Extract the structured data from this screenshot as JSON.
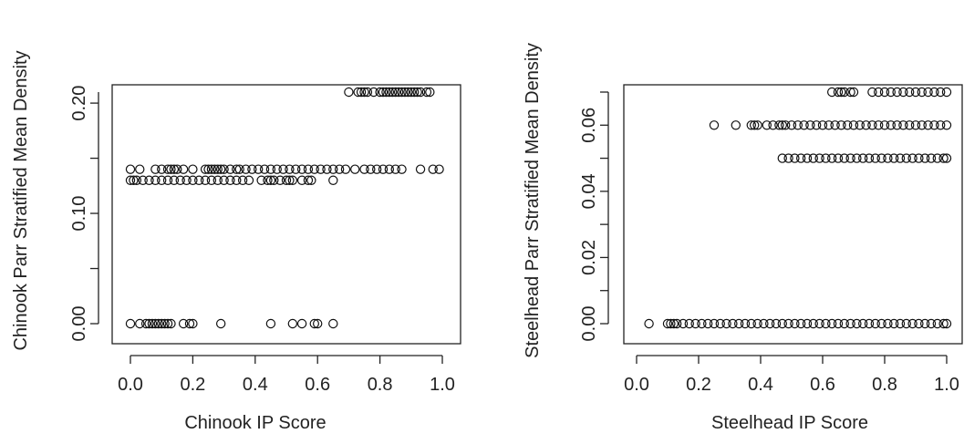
{
  "chart_data": [
    {
      "type": "scatter",
      "xlabel": "Chinook IP Score",
      "ylabel": "Chinook Parr Stratified Mean Density",
      "xlim": [
        0.0,
        1.0
      ],
      "ylim": [
        0.0,
        0.21
      ],
      "xticks": [
        "0.0",
        "0.2",
        "0.4",
        "0.6",
        "0.8",
        "1.0"
      ],
      "yticks": [
        "0.00",
        "0.10",
        "0.20"
      ],
      "series": [
        {
          "points": [
            [
              0.0,
              0.0
            ],
            [
              0.03,
              0.0
            ],
            [
              0.05,
              0.0
            ],
            [
              0.06,
              0.0
            ],
            [
              0.07,
              0.0
            ],
            [
              0.08,
              0.0
            ],
            [
              0.09,
              0.0
            ],
            [
              0.1,
              0.0
            ],
            [
              0.11,
              0.0
            ],
            [
              0.12,
              0.0
            ],
            [
              0.13,
              0.0
            ],
            [
              0.17,
              0.0
            ],
            [
              0.19,
              0.0
            ],
            [
              0.2,
              0.0
            ],
            [
              0.29,
              0.0
            ],
            [
              0.45,
              0.0
            ],
            [
              0.52,
              0.0
            ],
            [
              0.55,
              0.0
            ],
            [
              0.59,
              0.0
            ],
            [
              0.6,
              0.0
            ],
            [
              0.65,
              0.0
            ],
            [
              0.0,
              0.13
            ],
            [
              0.01,
              0.13
            ],
            [
              0.02,
              0.13
            ],
            [
              0.04,
              0.13
            ],
            [
              0.06,
              0.13
            ],
            [
              0.08,
              0.13
            ],
            [
              0.1,
              0.13
            ],
            [
              0.12,
              0.13
            ],
            [
              0.14,
              0.13
            ],
            [
              0.16,
              0.13
            ],
            [
              0.18,
              0.13
            ],
            [
              0.2,
              0.13
            ],
            [
              0.22,
              0.13
            ],
            [
              0.24,
              0.13
            ],
            [
              0.26,
              0.13
            ],
            [
              0.28,
              0.13
            ],
            [
              0.3,
              0.13
            ],
            [
              0.32,
              0.13
            ],
            [
              0.34,
              0.13
            ],
            [
              0.36,
              0.13
            ],
            [
              0.38,
              0.13
            ],
            [
              0.42,
              0.13
            ],
            [
              0.44,
              0.13
            ],
            [
              0.45,
              0.13
            ],
            [
              0.46,
              0.13
            ],
            [
              0.48,
              0.13
            ],
            [
              0.5,
              0.13
            ],
            [
              0.51,
              0.13
            ],
            [
              0.52,
              0.13
            ],
            [
              0.55,
              0.13
            ],
            [
              0.57,
              0.13
            ],
            [
              0.58,
              0.13
            ],
            [
              0.65,
              0.13
            ],
            [
              0.0,
              0.14
            ],
            [
              0.03,
              0.14
            ],
            [
              0.08,
              0.14
            ],
            [
              0.1,
              0.14
            ],
            [
              0.12,
              0.14
            ],
            [
              0.13,
              0.14
            ],
            [
              0.14,
              0.14
            ],
            [
              0.15,
              0.14
            ],
            [
              0.17,
              0.14
            ],
            [
              0.2,
              0.14
            ],
            [
              0.24,
              0.14
            ],
            [
              0.25,
              0.14
            ],
            [
              0.26,
              0.14
            ],
            [
              0.27,
              0.14
            ],
            [
              0.28,
              0.14
            ],
            [
              0.29,
              0.14
            ],
            [
              0.3,
              0.14
            ],
            [
              0.32,
              0.14
            ],
            [
              0.34,
              0.14
            ],
            [
              0.35,
              0.14
            ],
            [
              0.37,
              0.14
            ],
            [
              0.39,
              0.14
            ],
            [
              0.41,
              0.14
            ],
            [
              0.43,
              0.14
            ],
            [
              0.45,
              0.14
            ],
            [
              0.47,
              0.14
            ],
            [
              0.49,
              0.14
            ],
            [
              0.51,
              0.14
            ],
            [
              0.53,
              0.14
            ],
            [
              0.55,
              0.14
            ],
            [
              0.57,
              0.14
            ],
            [
              0.59,
              0.14
            ],
            [
              0.61,
              0.14
            ],
            [
              0.63,
              0.14
            ],
            [
              0.65,
              0.14
            ],
            [
              0.67,
              0.14
            ],
            [
              0.69,
              0.14
            ],
            [
              0.72,
              0.14
            ],
            [
              0.75,
              0.14
            ],
            [
              0.77,
              0.14
            ],
            [
              0.79,
              0.14
            ],
            [
              0.81,
              0.14
            ],
            [
              0.83,
              0.14
            ],
            [
              0.85,
              0.14
            ],
            [
              0.87,
              0.14
            ],
            [
              0.93,
              0.14
            ],
            [
              0.97,
              0.14
            ],
            [
              0.99,
              0.14
            ],
            [
              0.7,
              0.21
            ],
            [
              0.73,
              0.21
            ],
            [
              0.74,
              0.21
            ],
            [
              0.75,
              0.21
            ],
            [
              0.76,
              0.21
            ],
            [
              0.78,
              0.21
            ],
            [
              0.8,
              0.21
            ],
            [
              0.81,
              0.21
            ],
            [
              0.82,
              0.21
            ],
            [
              0.83,
              0.21
            ],
            [
              0.84,
              0.21
            ],
            [
              0.85,
              0.21
            ],
            [
              0.86,
              0.21
            ],
            [
              0.87,
              0.21
            ],
            [
              0.88,
              0.21
            ],
            [
              0.89,
              0.21
            ],
            [
              0.9,
              0.21
            ],
            [
              0.91,
              0.21
            ],
            [
              0.92,
              0.21
            ],
            [
              0.93,
              0.21
            ],
            [
              0.95,
              0.21
            ],
            [
              0.96,
              0.21
            ]
          ]
        }
      ]
    },
    {
      "type": "scatter",
      "xlabel": "Steelhead IP Score",
      "ylabel": "Steelhead Parr Stratified Mean Density",
      "xlim": [
        0.0,
        1.0
      ],
      "ylim": [
        0.0,
        0.07
      ],
      "xticks": [
        "0.0",
        "0.2",
        "0.4",
        "0.6",
        "0.8",
        "1.0"
      ],
      "yticks": [
        "0.00",
        "0.02",
        "0.04",
        "0.06"
      ],
      "series": [
        {
          "points": [
            [
              0.04,
              0.0
            ],
            [
              0.1,
              0.0
            ],
            [
              0.11,
              0.0
            ],
            [
              0.12,
              0.0
            ],
            [
              0.13,
              0.0
            ],
            [
              0.15,
              0.0
            ],
            [
              0.17,
              0.0
            ],
            [
              0.19,
              0.0
            ],
            [
              0.21,
              0.0
            ],
            [
              0.23,
              0.0
            ],
            [
              0.25,
              0.0
            ],
            [
              0.27,
              0.0
            ],
            [
              0.29,
              0.0
            ],
            [
              0.31,
              0.0
            ],
            [
              0.33,
              0.0
            ],
            [
              0.35,
              0.0
            ],
            [
              0.37,
              0.0
            ],
            [
              0.39,
              0.0
            ],
            [
              0.41,
              0.0
            ],
            [
              0.43,
              0.0
            ],
            [
              0.45,
              0.0
            ],
            [
              0.47,
              0.0
            ],
            [
              0.49,
              0.0
            ],
            [
              0.51,
              0.0
            ],
            [
              0.53,
              0.0
            ],
            [
              0.55,
              0.0
            ],
            [
              0.57,
              0.0
            ],
            [
              0.59,
              0.0
            ],
            [
              0.61,
              0.0
            ],
            [
              0.63,
              0.0
            ],
            [
              0.65,
              0.0
            ],
            [
              0.67,
              0.0
            ],
            [
              0.69,
              0.0
            ],
            [
              0.71,
              0.0
            ],
            [
              0.73,
              0.0
            ],
            [
              0.75,
              0.0
            ],
            [
              0.77,
              0.0
            ],
            [
              0.79,
              0.0
            ],
            [
              0.81,
              0.0
            ],
            [
              0.83,
              0.0
            ],
            [
              0.85,
              0.0
            ],
            [
              0.87,
              0.0
            ],
            [
              0.89,
              0.0
            ],
            [
              0.91,
              0.0
            ],
            [
              0.93,
              0.0
            ],
            [
              0.95,
              0.0
            ],
            [
              0.97,
              0.0
            ],
            [
              0.99,
              0.0
            ],
            [
              1.0,
              0.0
            ],
            [
              0.47,
              0.05
            ],
            [
              0.49,
              0.05
            ],
            [
              0.51,
              0.05
            ],
            [
              0.53,
              0.05
            ],
            [
              0.55,
              0.05
            ],
            [
              0.57,
              0.05
            ],
            [
              0.59,
              0.05
            ],
            [
              0.61,
              0.05
            ],
            [
              0.63,
              0.05
            ],
            [
              0.65,
              0.05
            ],
            [
              0.67,
              0.05
            ],
            [
              0.69,
              0.05
            ],
            [
              0.71,
              0.05
            ],
            [
              0.73,
              0.05
            ],
            [
              0.75,
              0.05
            ],
            [
              0.77,
              0.05
            ],
            [
              0.79,
              0.05
            ],
            [
              0.81,
              0.05
            ],
            [
              0.83,
              0.05
            ],
            [
              0.85,
              0.05
            ],
            [
              0.87,
              0.05
            ],
            [
              0.89,
              0.05
            ],
            [
              0.91,
              0.05
            ],
            [
              0.93,
              0.05
            ],
            [
              0.95,
              0.05
            ],
            [
              0.97,
              0.05
            ],
            [
              0.99,
              0.05
            ],
            [
              1.0,
              0.05
            ],
            [
              0.25,
              0.06
            ],
            [
              0.32,
              0.06
            ],
            [
              0.37,
              0.06
            ],
            [
              0.38,
              0.06
            ],
            [
              0.39,
              0.06
            ],
            [
              0.42,
              0.06
            ],
            [
              0.44,
              0.06
            ],
            [
              0.46,
              0.06
            ],
            [
              0.47,
              0.06
            ],
            [
              0.48,
              0.06
            ],
            [
              0.5,
              0.06
            ],
            [
              0.52,
              0.06
            ],
            [
              0.54,
              0.06
            ],
            [
              0.56,
              0.06
            ],
            [
              0.58,
              0.06
            ],
            [
              0.6,
              0.06
            ],
            [
              0.62,
              0.06
            ],
            [
              0.64,
              0.06
            ],
            [
              0.66,
              0.06
            ],
            [
              0.68,
              0.06
            ],
            [
              0.7,
              0.06
            ],
            [
              0.72,
              0.06
            ],
            [
              0.74,
              0.06
            ],
            [
              0.76,
              0.06
            ],
            [
              0.78,
              0.06
            ],
            [
              0.8,
              0.06
            ],
            [
              0.82,
              0.06
            ],
            [
              0.84,
              0.06
            ],
            [
              0.86,
              0.06
            ],
            [
              0.88,
              0.06
            ],
            [
              0.9,
              0.06
            ],
            [
              0.92,
              0.06
            ],
            [
              0.94,
              0.06
            ],
            [
              0.96,
              0.06
            ],
            [
              0.98,
              0.06
            ],
            [
              1.0,
              0.06
            ],
            [
              0.63,
              0.07
            ],
            [
              0.65,
              0.07
            ],
            [
              0.66,
              0.07
            ],
            [
              0.67,
              0.07
            ],
            [
              0.69,
              0.07
            ],
            [
              0.7,
              0.07
            ],
            [
              0.76,
              0.07
            ],
            [
              0.78,
              0.07
            ],
            [
              0.8,
              0.07
            ],
            [
              0.82,
              0.07
            ],
            [
              0.84,
              0.07
            ],
            [
              0.86,
              0.07
            ],
            [
              0.88,
              0.07
            ],
            [
              0.9,
              0.07
            ],
            [
              0.92,
              0.07
            ],
            [
              0.94,
              0.07
            ],
            [
              0.96,
              0.07
            ],
            [
              0.98,
              0.07
            ],
            [
              1.0,
              0.07
            ]
          ]
        }
      ]
    }
  ]
}
